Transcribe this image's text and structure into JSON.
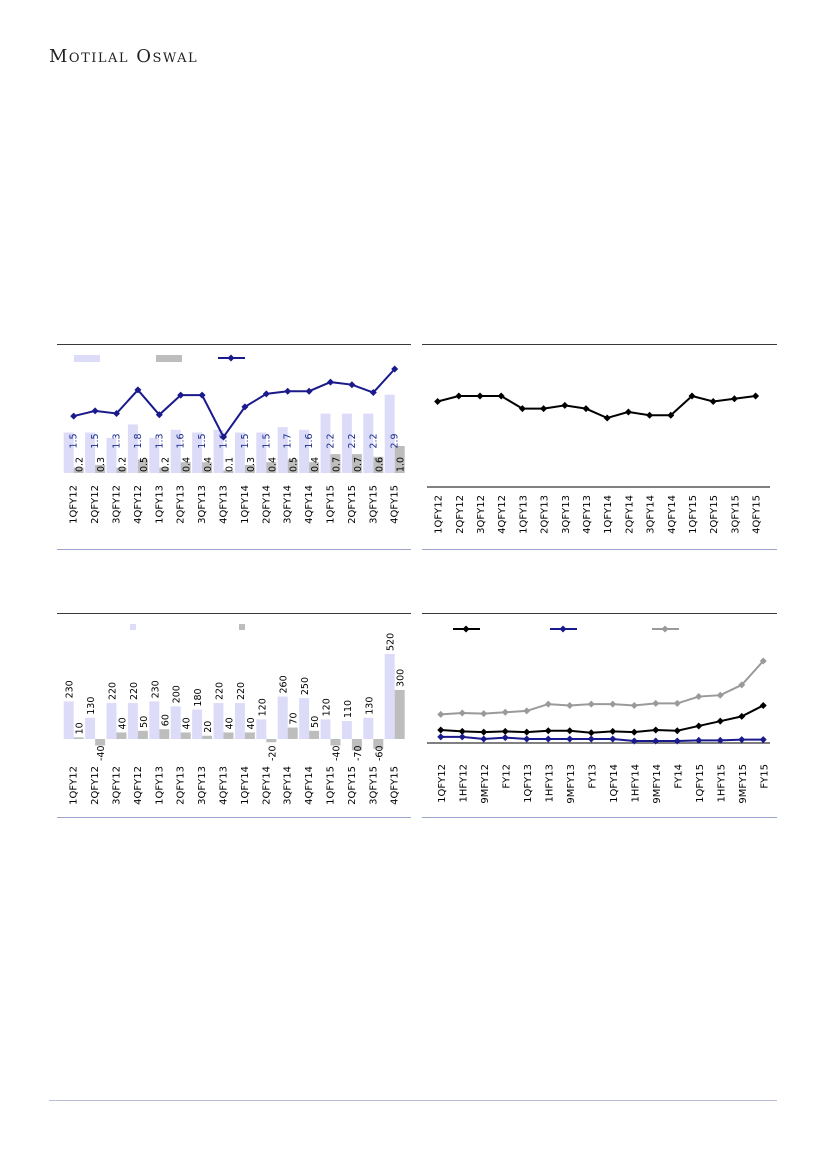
{
  "brand": {
    "logo_text": "Motilal Oswal"
  },
  "colors": {
    "light_bar": "#dcdcf8",
    "gray_bar": "#bdbdbd",
    "navy_line": "#1a1a8c",
    "black_line": "#000000",
    "gray_line": "#9a9a9a",
    "panel_rule": "#9da3cf"
  },
  "chart_data": [
    {
      "id": "chart1",
      "type": "bar",
      "categories": [
        "1QFY12",
        "2QFY12",
        "3QFY12",
        "4QFY12",
        "1QFY13",
        "2QFY13",
        "3QFY13",
        "4QFY13",
        "1QFY14",
        "2QFY14",
        "3QFY14",
        "4QFY14",
        "1QFY15",
        "2QFY15",
        "3QFY15",
        "4QFY15"
      ],
      "series": [
        {
          "kind": "bar",
          "color": "#dcdcf8",
          "values": [
            1.5,
            1.5,
            1.3,
            1.8,
            1.3,
            1.6,
            1.5,
            1.6,
            1.5,
            1.5,
            1.7,
            1.6,
            2.2,
            2.2,
            2.2,
            2.9
          ]
        },
        {
          "kind": "bar",
          "color": "#bdbdbd",
          "values": [
            0.2,
            0.3,
            0.2,
            0.5,
            0.2,
            0.4,
            0.4,
            0.1,
            0.3,
            0.4,
            0.5,
            0.4,
            0.7,
            0.7,
            0.6,
            1.0
          ]
        },
        {
          "kind": "line",
          "color": "#1a1a8c",
          "values": [
            14,
            18,
            16,
            34,
            15,
            30,
            30,
            -2,
            21,
            31,
            33,
            33,
            40,
            38,
            32,
            50
          ]
        }
      ],
      "value_labels_a": [
        "1.5",
        "1.5",
        "1.3",
        "1.8",
        "1.3",
        "1.6",
        "1.5",
        "1.6",
        "1.5",
        "1.5",
        "1.7",
        "1.6",
        "2.2",
        "2.2",
        "2.2",
        "2.9"
      ],
      "value_labels_b": [
        "0.2",
        "0.3",
        "0.2",
        "0.5",
        "0.2",
        "0.4",
        "0.4",
        "0.1",
        "0.3",
        "0.4",
        "0.5",
        "0.4",
        "0.7",
        "0.7",
        "0.6",
        "1.0"
      ],
      "legend": "top-left"
    },
    {
      "id": "chart2",
      "type": "line",
      "categories": [
        "1QFY12",
        "2QFY12",
        "3QFY12",
        "4QFY12",
        "1QFY13",
        "2QFY13",
        "3QFY13",
        "4QFY13",
        "1QFY14",
        "2QFY14",
        "3QFY14",
        "4QFY14",
        "1QFY15",
        "2QFY15",
        "3QFY15",
        "4QFY15"
      ],
      "series": [
        {
          "color": "#000000",
          "values": [
            9.5,
            10.5,
            10.5,
            10.5,
            8.2,
            8.2,
            8.8,
            8.2,
            6.5,
            7.6,
            7.0,
            7.0,
            10.5,
            9.5,
            10.0,
            10.5
          ]
        }
      ]
    },
    {
      "id": "chart3",
      "type": "bar",
      "categories": [
        "1QFY12",
        "2QFY12",
        "3QFY12",
        "4QFY12",
        "1QFY13",
        "2QFY13",
        "3QFY13",
        "4QFY13",
        "1QFY14",
        "2QFY14",
        "3QFY14",
        "4QFY14",
        "1QFY15",
        "2QFY15",
        "3QFY15",
        "4QFY15"
      ],
      "series": [
        {
          "kind": "bar",
          "color": "#dcdcf8",
          "values": [
            230,
            130,
            220,
            220,
            230,
            200,
            180,
            220,
            220,
            120,
            260,
            250,
            120,
            110,
            130,
            520
          ]
        },
        {
          "kind": "bar",
          "color": "#bdbdbd",
          "values": [
            10,
            -40,
            40,
            50,
            60,
            40,
            20,
            40,
            40,
            -20,
            70,
            50,
            -40,
            -70,
            -60,
            300
          ]
        }
      ],
      "value_labels_a": [
        "230",
        "130",
        "220",
        "220",
        "230",
        "200",
        "180",
        "220",
        "220",
        "120",
        "260",
        "250",
        "120",
        "110",
        "130",
        "520"
      ],
      "value_labels_b": [
        "10",
        "-40",
        "40",
        "50",
        "60",
        "40",
        "20",
        "40",
        "40",
        "-20",
        "70",
        "50",
        "-40",
        "-70",
        "-60",
        "300"
      ],
      "legend": "top"
    },
    {
      "id": "chart4",
      "type": "line",
      "categories": [
        "1QFY12",
        "1HFY12",
        "9MFY12",
        "FY12",
        "1QFY13",
        "1HFY13",
        "9MFY13",
        "FY13",
        "1QFY14",
        "1HFY14",
        "9MFY14",
        "FY14",
        "1QFY15",
        "1HFY15",
        "9MFY15",
        "FY15"
      ],
      "series": [
        {
          "color": "#000000",
          "values": [
            12,
            10,
            9,
            10,
            9,
            11,
            11,
            8,
            10,
            9,
            12,
            11,
            18,
            25,
            32,
            48
          ]
        },
        {
          "color": "#1a1a8c",
          "values": [
            2,
            2,
            -1,
            1,
            -1,
            -1,
            -1,
            -1,
            -1,
            -4,
            -4,
            -4,
            -3,
            -3,
            -2,
            -2
          ]
        },
        {
          "color": "#9a9a9a",
          "values": [
            35,
            37,
            36,
            38,
            40,
            50,
            48,
            50,
            50,
            48,
            51,
            51,
            61,
            63,
            78,
            113
          ]
        }
      ],
      "legend": "top"
    }
  ]
}
